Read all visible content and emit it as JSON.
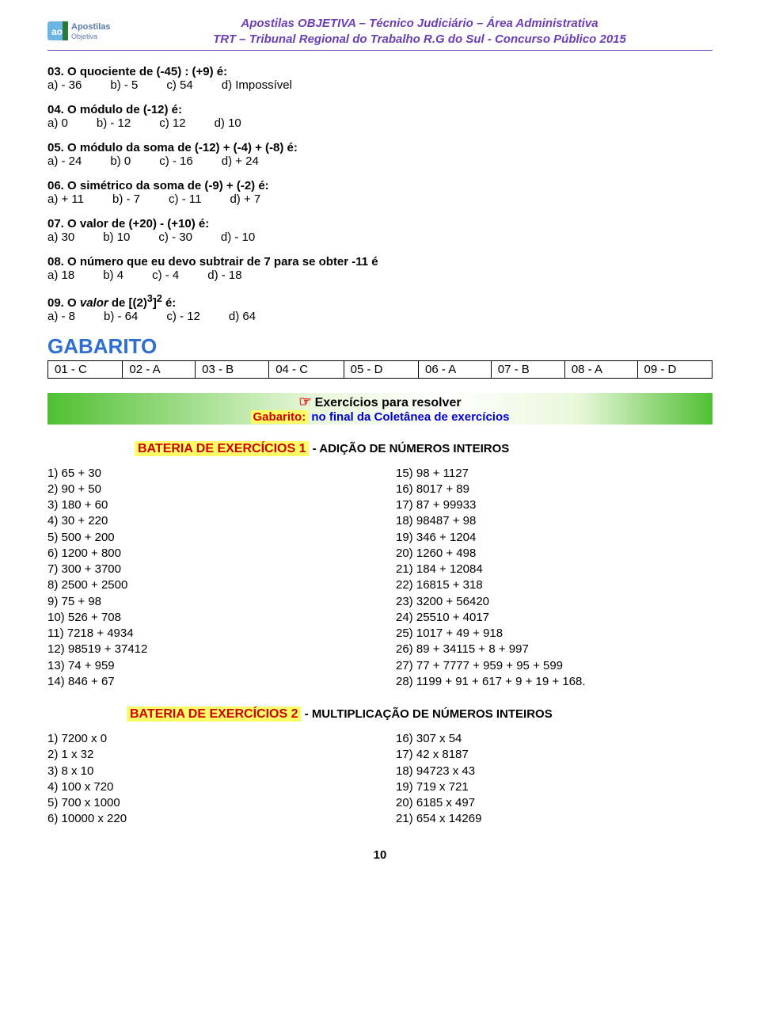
{
  "header": {
    "line1": "Apostilas OBJETIVA – Técnico Judiciário – Área Administrativa",
    "line2": "TRT – Tribunal Regional do Trabalho  R.G do Sul - Concurso Público 2015",
    "logo_text1": "ao",
    "logo_text2": "Apostilas",
    "logo_text3": "Objetiva"
  },
  "questions": [
    {
      "n": "03.",
      "title": "O quociente de (-45) : (+9) é:",
      "ans": [
        "a)  - 36",
        "b) - 5",
        "c) 54",
        "d) Impossível"
      ]
    },
    {
      "n": "04.",
      "title": "O módulo de (-12) é:",
      "ans": [
        "a)  0",
        "b) - 12",
        "c) 12",
        "d) 10"
      ]
    },
    {
      "n": "05.",
      "title": "O módulo da soma de (-12) + (-4) + (-8) é:",
      "ans": [
        "a) - 24",
        "b) 0",
        "c) - 16",
        "d) + 24"
      ]
    },
    {
      "n": "06.",
      "title": "O simétrico da soma de (-9) + (-2) é:",
      "ans": [
        "a)  + 11",
        "b) - 7",
        "c) - 11",
        "d) + 7"
      ]
    },
    {
      "n": "07.",
      "title": "O valor de (+20) - (+10) é:",
      "ans": [
        "a)  30",
        "b) 10",
        "c) - 30",
        "d) - 10"
      ]
    },
    {
      "n": "08.",
      "title": "O número que eu devo subtrair de 7 para se obter -11 é",
      "ans": [
        "a)  18",
        "b) 4",
        "c) - 4",
        "d) - 18"
      ]
    }
  ],
  "q09": {
    "prefix": "09.  O ",
    "italic": "valor",
    "mid": " de [(2)",
    "sup1": "3",
    "mid2": "]",
    "sup2": "2",
    "suffix": " é:",
    "ans": [
      "a) - 8",
      "b) - 64",
      "c) - 12",
      "d) 64"
    ]
  },
  "gabarito": {
    "title": "GABARITO",
    "cells": [
      "01 - C",
      "02 - A",
      "03 - B",
      "04 - C",
      "05 - D",
      "06 - A",
      "07 - B",
      "08 - A",
      "09 - D"
    ]
  },
  "exerc_bar": {
    "line1": "Exercícios para resolver",
    "gab": "Gabarito:",
    "blue": " no final da Coletânea de exercícios"
  },
  "bateria1": {
    "label": "BATERIA DE EXERCÍCIOS  1",
    "sub": " - ADIÇÃO DE NÚMEROS INTEIROS",
    "left": [
      "1) 65 + 30",
      "2) 90 + 50",
      "3) 180 + 60",
      "4) 30 + 220",
      "5) 500 + 200",
      "6) 1200 + 800",
      "7) 300 + 3700",
      "8) 2500 + 2500",
      "9) 75 + 98",
      "10) 526 + 708",
      "11) 7218 + 4934",
      "12) 98519 + 37412",
      "13) 74 + 959",
      "14) 846 + 67"
    ],
    "right": [
      "15) 98 + 1127",
      "16) 8017 + 89",
      "17) 87 + 99933",
      "18) 98487 + 98",
      "19) 346 + 1204",
      "20) 1260 + 498",
      "21) 184 + 12084",
      "22) 16815 + 318",
      "23) 3200 + 56420",
      "24) 25510 + 4017",
      "25) 1017 + 49 + 918",
      "26) 89 + 34115 + 8 + 997",
      "27) 77 + 7777 + 959 + 95 + 599",
      "28) 1199 + 91 + 617 + 9 + 19 + 168."
    ]
  },
  "bateria2": {
    "label": "BATERIA DE EXERCÍCIOS  2",
    "sub": "  - MULTIPLICAÇÃO DE NÚMEROS INTEIROS",
    "left": [
      "1) 7200 x 0",
      "2) 1 x 32",
      "3) 8 x 10",
      "4) 100 x 720",
      "5) 700 x 1000",
      "6) 10000 x 220"
    ],
    "right": [
      "16) 307 x 54",
      "17) 42 x 8187",
      "18) 94723 x 43",
      "19) 719 x 721",
      "20) 6185 x 497",
      "21) 654 x 14269"
    ]
  },
  "page_number": "10"
}
